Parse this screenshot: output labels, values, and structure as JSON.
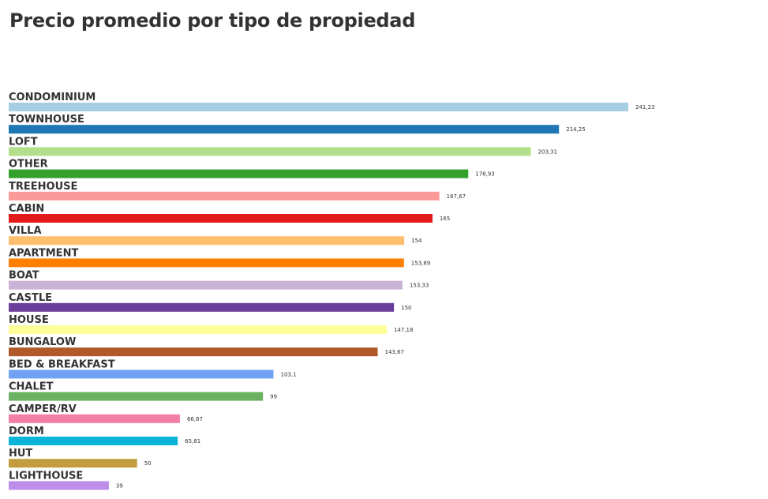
{
  "chart_data": {
    "type": "bar",
    "orientation": "horizontal",
    "title": "Precio promedio por tipo de propiedad",
    "xlabel": "",
    "ylabel": "",
    "grid": false,
    "legend": "none",
    "xlim": [
      0,
      241.23
    ],
    "categories": [
      "CONDOMINIUM",
      "TOWNHOUSE",
      "LOFT",
      "OTHER",
      "TREEHOUSE",
      "CABIN",
      "VILLA",
      "APARTMENT",
      "BOAT",
      "CASTLE",
      "HOUSE",
      "BUNGALOW",
      "BED & BREAKFAST",
      "CHALET",
      "CAMPER/RV",
      "DORM",
      "HUT",
      "LIGHTHOUSE"
    ],
    "values": [
      241.23,
      214.25,
      203.31,
      178.93,
      167.67,
      165,
      154,
      153.89,
      153.33,
      150,
      147.18,
      143.67,
      103.1,
      99,
      66.67,
      65.81,
      50,
      39
    ],
    "value_labels": [
      "241,23",
      "214,25",
      "203,31",
      "178,93",
      "167,67",
      "165",
      "154",
      "153,89",
      "153,33",
      "150",
      "147,18",
      "143,67",
      "103,1",
      "99",
      "66,67",
      "65,81",
      "50",
      "39"
    ],
    "colors": [
      "#a6cee3",
      "#1f78b4",
      "#b2df8a",
      "#33a02c",
      "#fb9a99",
      "#e31a1c",
      "#fdbf6f",
      "#ff7f00",
      "#cab2d6",
      "#6a3d9a",
      "#ffff99",
      "#b15928",
      "#6fa2f3",
      "#6ab262",
      "#f47fa6",
      "#0cb4d8",
      "#c29c3d",
      "#bd8ee9"
    ]
  }
}
